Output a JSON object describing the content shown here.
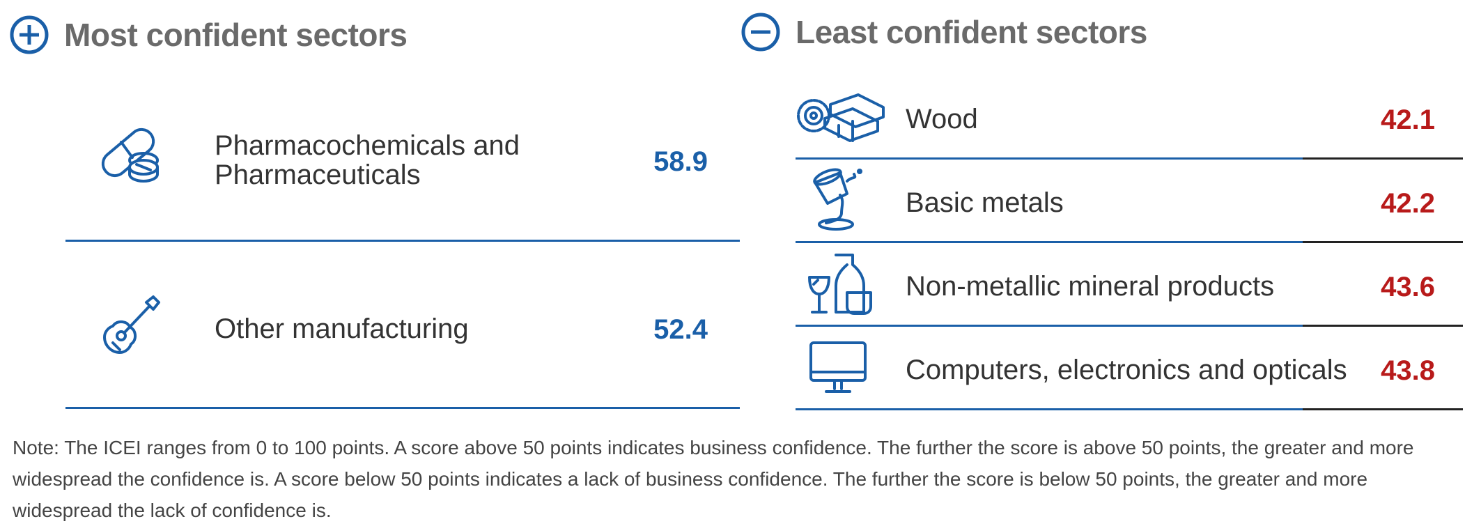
{
  "most": {
    "title": "Most confident sectors",
    "items": [
      {
        "label": "Pharmacochemicals and Pharmaceuticals",
        "value": "58.9",
        "icon": "pills-icon"
      },
      {
        "label": "Other manufacturing",
        "value": "52.4",
        "icon": "guitar-icon"
      }
    ]
  },
  "least": {
    "title": "Least confident sectors",
    "items": [
      {
        "label": "Wood",
        "value": "42.1",
        "icon": "wood-saw-icon"
      },
      {
        "label": "Basic metals",
        "value": "42.2",
        "icon": "molten-metal-icon"
      },
      {
        "label": "Non-metallic mineral products",
        "value": "43.6",
        "icon": "glassware-icon"
      },
      {
        "label": "Computers, electronics and opticals",
        "value": "43.8",
        "icon": "computer-monitor-icon"
      }
    ]
  },
  "note": "Note: The ICEI ranges from 0 to 100 points. A score above 50 points indicates business confidence. The further the score is above 50 points, the greater and more widespread the confidence is. A score below 50 points indicates a lack of business confidence. The further the score is below 50 points, the greater and more widespread the lack of confidence is.",
  "colors": {
    "accent_blue": "#1a5fa8",
    "accent_red": "#b81a1a",
    "heading_gray": "#6a6a6a"
  }
}
